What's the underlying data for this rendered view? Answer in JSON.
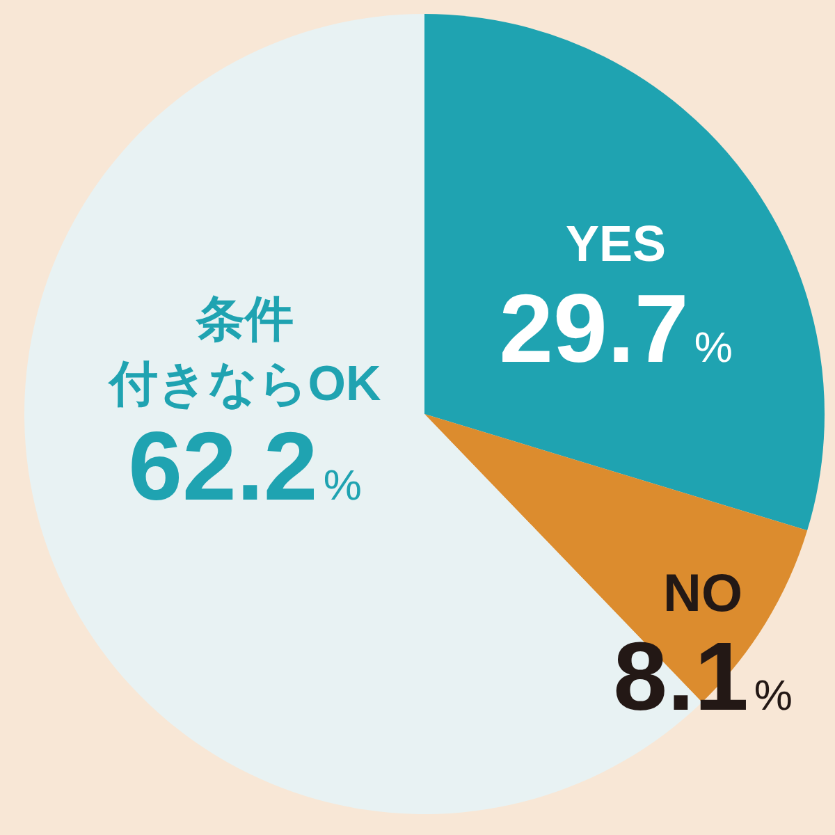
{
  "chart_data": {
    "type": "pie",
    "categories": [
      "YES",
      "NO",
      "条件付きならOK"
    ],
    "values": [
      29.7,
      8.1,
      62.2
    ],
    "colors": [
      "#1fa3b1",
      "#dc8c2e",
      "#e8f2f3"
    ],
    "value_labels": [
      "29.7%",
      "8.1%",
      "62.2%"
    ]
  }
}
